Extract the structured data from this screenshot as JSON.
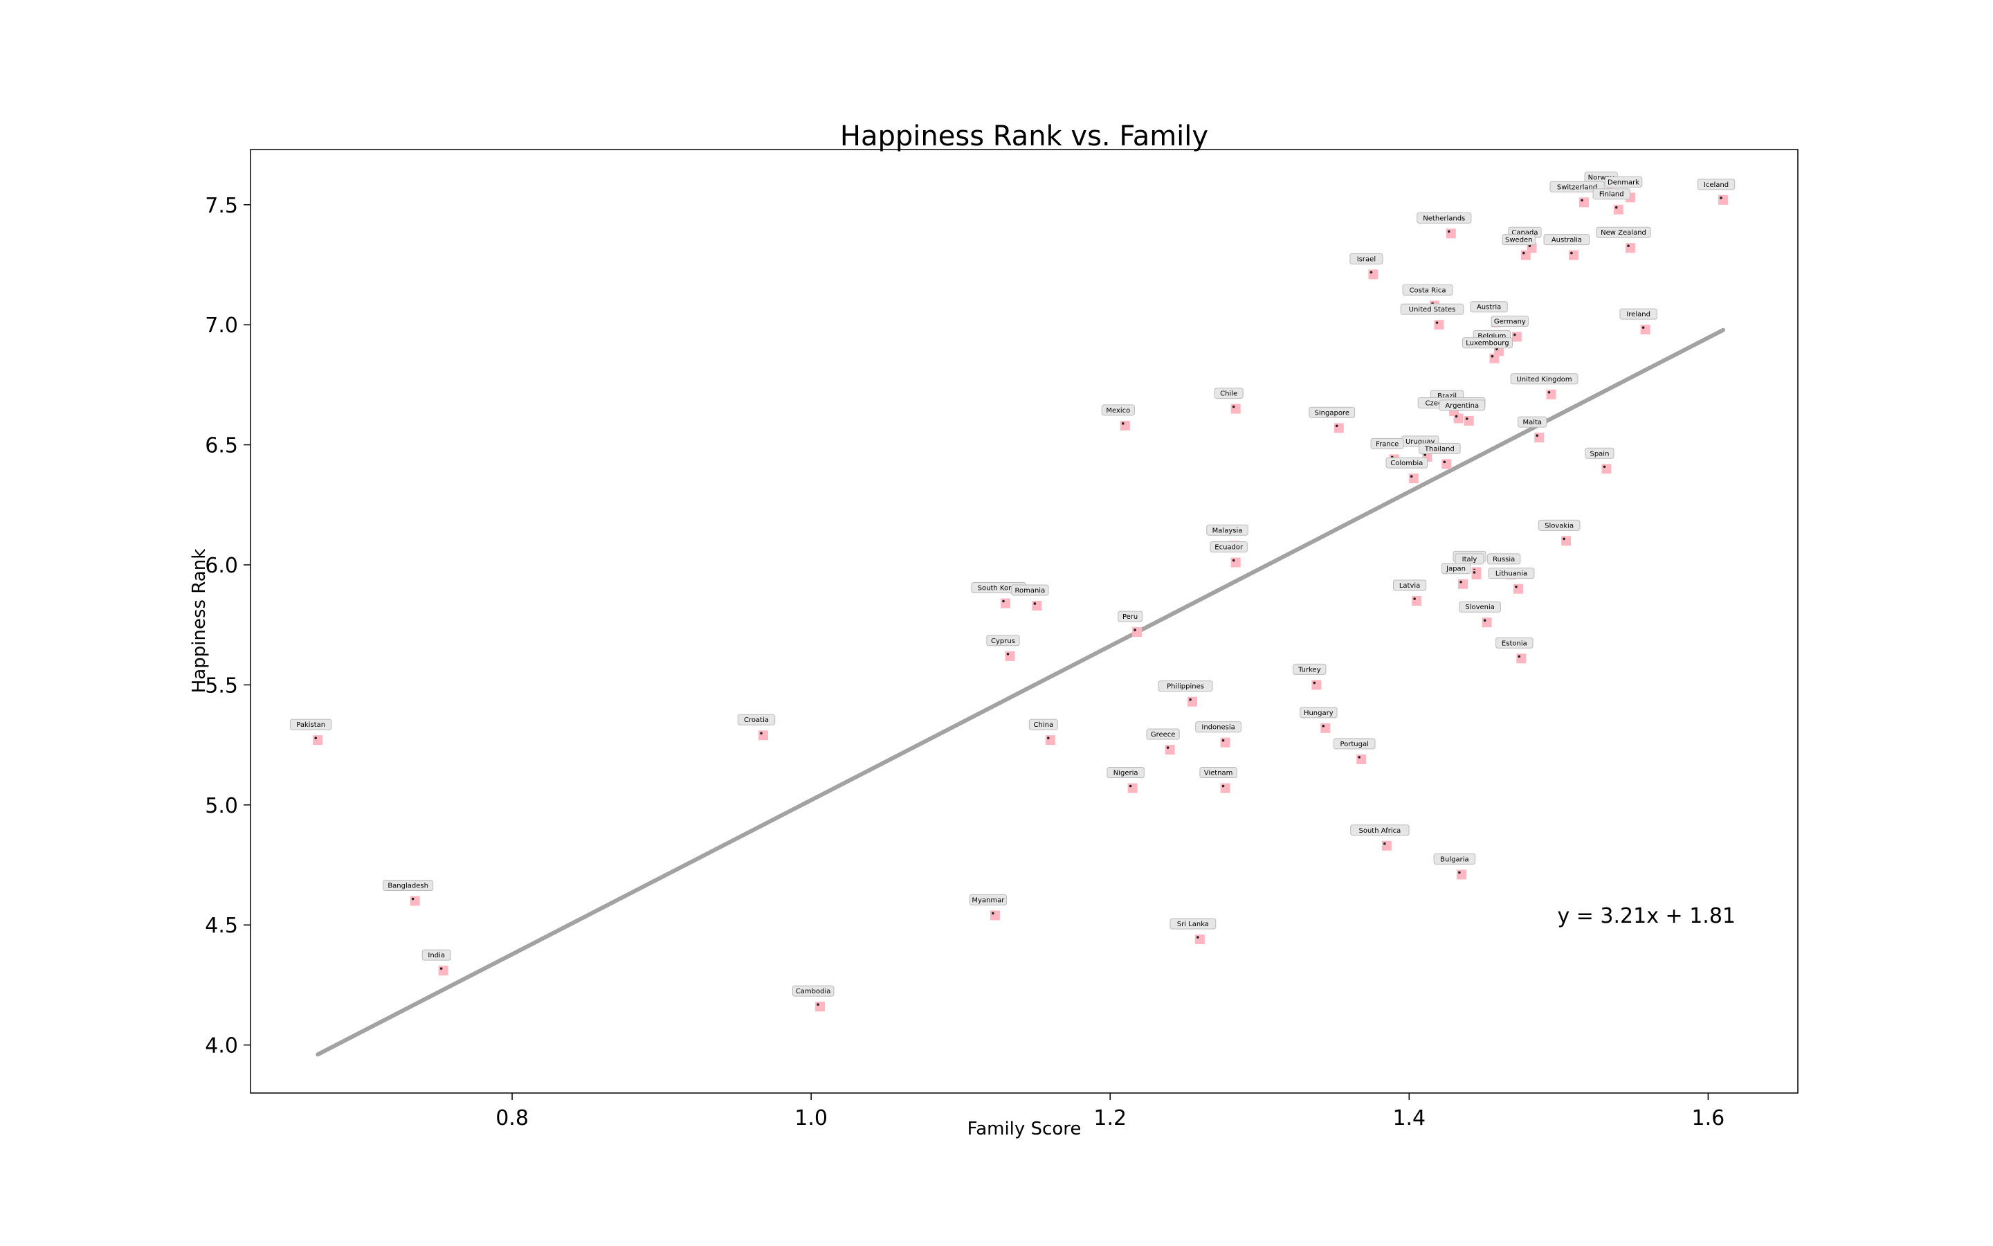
{
  "chart_data": {
    "type": "scatter",
    "title": "Happiness Rank vs. Family",
    "xlabel": "Family Score",
    "ylabel": "Happiness Rank",
    "xlim": [
      0.625,
      1.66
    ],
    "ylim": [
      3.8,
      7.73
    ],
    "xticks": [
      0.8,
      1.0,
      1.2,
      1.4,
      1.6
    ],
    "xtick_labels": [
      "0.8",
      "1.0",
      "1.2",
      "1.4",
      "1.6"
    ],
    "yticks": [
      4.0,
      4.5,
      5.0,
      5.5,
      6.0,
      6.5,
      7.0,
      7.5
    ],
    "ytick_labels": [
      "4.0",
      "4.5",
      "5.0",
      "5.5",
      "6.0",
      "6.5",
      "7.0",
      "7.5"
    ],
    "grid": false,
    "colors": {
      "marker": "#ffb6c1",
      "fit_line": "#999999",
      "label_box": "#e6e6e6"
    },
    "trendline": {
      "slope": 3.21,
      "intercept": 1.81,
      "x_start": 0.67,
      "x_end": 1.61,
      "equation": "y = 3.21x + 1.81"
    },
    "points": [
      {
        "label": "Iceland",
        "x": 1.61,
        "y": 7.52
      },
      {
        "label": "Norway",
        "x": 1.533,
        "y": 7.55
      },
      {
        "label": "Denmark",
        "x": 1.548,
        "y": 7.53
      },
      {
        "label": "Switzerland",
        "x": 1.517,
        "y": 7.51
      },
      {
        "label": "Finland",
        "x": 1.54,
        "y": 7.48
      },
      {
        "label": "Netherlands",
        "x": 1.428,
        "y": 7.38
      },
      {
        "label": "Canada",
        "x": 1.482,
        "y": 7.32
      },
      {
        "label": "Sweden",
        "x": 1.478,
        "y": 7.29
      },
      {
        "label": "New Zealand",
        "x": 1.548,
        "y": 7.32
      },
      {
        "label": "Australia",
        "x": 1.51,
        "y": 7.29
      },
      {
        "label": "Israel",
        "x": 1.376,
        "y": 7.21
      },
      {
        "label": "Costa Rica",
        "x": 1.417,
        "y": 7.08
      },
      {
        "label": "United States",
        "x": 1.42,
        "y": 7.0
      },
      {
        "label": "Austria",
        "x": 1.458,
        "y": 7.01
      },
      {
        "label": "Germany",
        "x": 1.472,
        "y": 6.95
      },
      {
        "label": "Ireland",
        "x": 1.558,
        "y": 6.98
      },
      {
        "label": "Belgium",
        "x": 1.46,
        "y": 6.89
      },
      {
        "label": "Luxembourg",
        "x": 1.457,
        "y": 6.86
      },
      {
        "label": "United Kingdom",
        "x": 1.495,
        "y": 6.71
      },
      {
        "label": "Chile",
        "x": 1.284,
        "y": 6.65
      },
      {
        "label": "Brazil",
        "x": 1.43,
        "y": 6.64
      },
      {
        "label": "Czech Republic",
        "x": 1.433,
        "y": 6.61
      },
      {
        "label": "Argentina",
        "x": 1.44,
        "y": 6.6
      },
      {
        "label": "Mexico",
        "x": 1.21,
        "y": 6.58
      },
      {
        "label": "Singapore",
        "x": 1.353,
        "y": 6.57
      },
      {
        "label": "Malta",
        "x": 1.487,
        "y": 6.53
      },
      {
        "label": "Uruguay",
        "x": 1.412,
        "y": 6.45
      },
      {
        "label": "France",
        "x": 1.39,
        "y": 6.44
      },
      {
        "label": "Thailand",
        "x": 1.425,
        "y": 6.42
      },
      {
        "label": "Spain",
        "x": 1.532,
        "y": 6.4
      },
      {
        "label": "Colombia",
        "x": 1.403,
        "y": 6.36
      },
      {
        "label": "Slovakia",
        "x": 1.505,
        "y": 6.1
      },
      {
        "label": "Malaysia",
        "x": 1.283,
        "y": 6.08
      },
      {
        "label": "Ecuador",
        "x": 1.284,
        "y": 6.01
      },
      {
        "label": "Poland",
        "x": 1.445,
        "y": 5.97
      },
      {
        "label": "Russia",
        "x": 1.468,
        "y": 5.96
      },
      {
        "label": "Italy",
        "x": 1.445,
        "y": 5.96
      },
      {
        "label": "Japan",
        "x": 1.436,
        "y": 5.92
      },
      {
        "label": "Lithuania",
        "x": 1.473,
        "y": 5.9
      },
      {
        "label": "South Korea",
        "x": 1.13,
        "y": 5.84
      },
      {
        "label": "Romania",
        "x": 1.151,
        "y": 5.83
      },
      {
        "label": "Latvia",
        "x": 1.405,
        "y": 5.85
      },
      {
        "label": "Slovenia",
        "x": 1.452,
        "y": 5.76
      },
      {
        "label": "Peru",
        "x": 1.218,
        "y": 5.72
      },
      {
        "label": "Cyprus",
        "x": 1.133,
        "y": 5.62
      },
      {
        "label": "Estonia",
        "x": 1.475,
        "y": 5.61
      },
      {
        "label": "Turkey",
        "x": 1.338,
        "y": 5.5
      },
      {
        "label": "Philippines",
        "x": 1.255,
        "y": 5.43
      },
      {
        "label": "Hungary",
        "x": 1.344,
        "y": 5.32
      },
      {
        "label": "Pakistan",
        "x": 0.67,
        "y": 5.27
      },
      {
        "label": "Croatia",
        "x": 0.968,
        "y": 5.29
      },
      {
        "label": "China",
        "x": 1.16,
        "y": 5.27
      },
      {
        "label": "Indonesia",
        "x": 1.277,
        "y": 5.26
      },
      {
        "label": "Greece",
        "x": 1.24,
        "y": 5.23
      },
      {
        "label": "Portugal",
        "x": 1.368,
        "y": 5.19
      },
      {
        "label": "Nigeria",
        "x": 1.215,
        "y": 5.07
      },
      {
        "label": "Vietnam",
        "x": 1.277,
        "y": 5.07
      },
      {
        "label": "South Africa",
        "x": 1.385,
        "y": 4.83
      },
      {
        "label": "Bulgaria",
        "x": 1.435,
        "y": 4.71
      },
      {
        "label": "Bangladesh",
        "x": 0.735,
        "y": 4.6
      },
      {
        "label": "Myanmar",
        "x": 1.123,
        "y": 4.54
      },
      {
        "label": "Sri Lanka",
        "x": 1.26,
        "y": 4.44
      },
      {
        "label": "India",
        "x": 0.754,
        "y": 4.31
      },
      {
        "label": "Cambodia",
        "x": 1.006,
        "y": 4.16
      }
    ]
  }
}
